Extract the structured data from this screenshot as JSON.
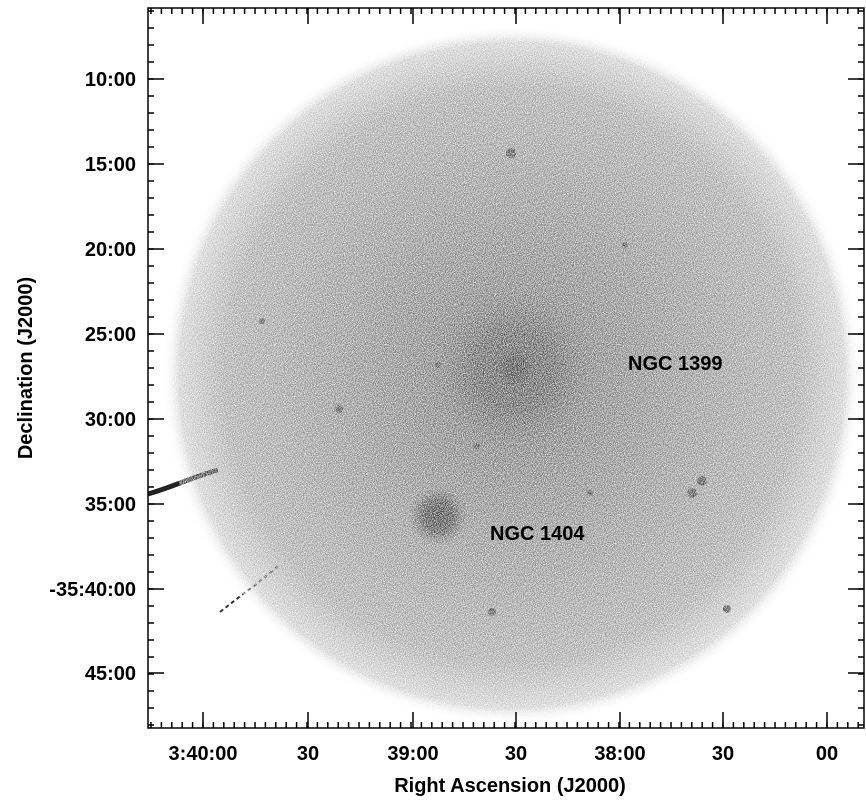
{
  "axes": {
    "x_label": "Right Ascension (J2000)",
    "y_label": "Declination (J2000)",
    "x_ticks": [
      "3:40:00",
      "30",
      "39:00",
      "30",
      "38:00",
      "30",
      "00"
    ],
    "y_ticks": [
      "10:00",
      "15:00",
      "20:00",
      "25:00",
      "30:00",
      "35:00",
      "-35:40:00",
      "45:00"
    ]
  },
  "annotations": [
    {
      "label": "NGC 1399"
    },
    {
      "label": "NGC 1404"
    }
  ]
}
